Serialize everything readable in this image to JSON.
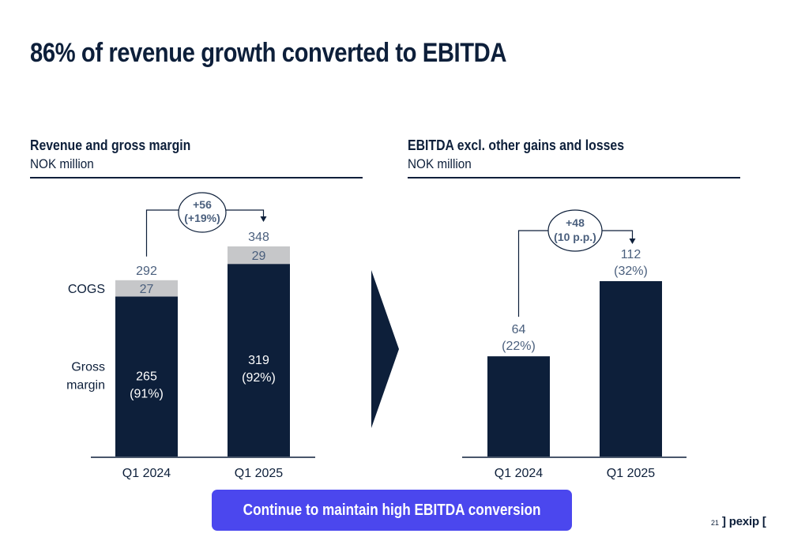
{
  "page": {
    "title": "86% of revenue growth converted to EBITDA",
    "banner": "Continue to maintain high EBITDA conversion",
    "page_number": "21",
    "logo_text": "] pexip ["
  },
  "colors": {
    "navy": "#0d1f3a",
    "cogs_grey": "#c6c7c9",
    "accent": "#4b47ee",
    "label_blue": "#4a5f7d"
  },
  "chart_data": [
    {
      "type": "bar",
      "stacked": true,
      "title": "Revenue and gross margin",
      "subtitle": "NOK million",
      "categories": [
        "Q1 2024",
        "Q1 2025"
      ],
      "series": [
        {
          "name": "Gross margin",
          "values": [
            265,
            319
          ],
          "labels": [
            "265",
            "319"
          ],
          "pct_labels": [
            "(91%)",
            "(92%)"
          ]
        },
        {
          "name": "COGS",
          "values": [
            27,
            29
          ],
          "labels": [
            "27",
            "29"
          ]
        }
      ],
      "totals": [
        "292",
        "348"
      ],
      "annotation": {
        "line1": "+56",
        "line2": "(+19%)"
      },
      "ylim": [
        0,
        348
      ]
    },
    {
      "type": "bar",
      "title": "EBITDA excl. other gains and losses",
      "subtitle": "NOK million",
      "categories": [
        "Q1 2024",
        "Q1 2025"
      ],
      "values": [
        64,
        112
      ],
      "value_labels": [
        "64",
        "112"
      ],
      "pct_labels": [
        "(22%)",
        "(32%)"
      ],
      "annotation": {
        "line1": "+48",
        "line2": "(10 p.p.)"
      },
      "ylim": [
        0,
        112
      ]
    }
  ]
}
